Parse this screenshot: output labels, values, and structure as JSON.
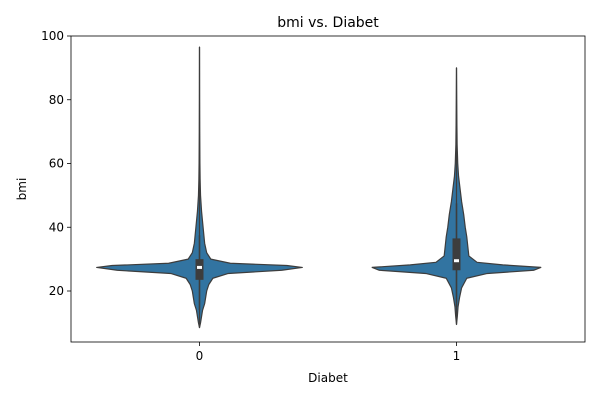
{
  "chart_data": {
    "type": "violin",
    "title": "bmi vs. Diabet",
    "xlabel": "Diabet",
    "ylabel": "bmi",
    "categories": [
      "0",
      "1"
    ],
    "ylim": [
      4,
      100
    ],
    "yticks": [
      20,
      40,
      60,
      80,
      100
    ],
    "grid": false,
    "legend": "none",
    "color": "#3274a1",
    "outline_color": "#3d3d3d",
    "violins": [
      {
        "category": "0",
        "min": 8.5,
        "q1": 23.5,
        "median": 27.4,
        "q3": 30.0,
        "max": 96.5,
        "whisker_low": 14.0,
        "whisker_high": 37.5,
        "density": [
          [
            8.5,
            0.0
          ],
          [
            10,
            0.01
          ],
          [
            12,
            0.02
          ],
          [
            14,
            0.03
          ],
          [
            16,
            0.05
          ],
          [
            18,
            0.06
          ],
          [
            20,
            0.07
          ],
          [
            22,
            0.09
          ],
          [
            24,
            0.13
          ],
          [
            25.5,
            0.28
          ],
          [
            26.5,
            0.8
          ],
          [
            27.4,
            1.0
          ],
          [
            28,
            0.85
          ],
          [
            28.7,
            0.3
          ],
          [
            30,
            0.11
          ],
          [
            32,
            0.07
          ],
          [
            35,
            0.05
          ],
          [
            40,
            0.035
          ],
          [
            45,
            0.02
          ],
          [
            50,
            0.01
          ],
          [
            55,
            0.006
          ],
          [
            60,
            0.004
          ],
          [
            70,
            0.002
          ],
          [
            80,
            0.001
          ],
          [
            96.5,
            0.0
          ]
        ]
      },
      {
        "category": "1",
        "min": 9.5,
        "q1": 26.5,
        "median": 29.5,
        "q3": 36.5,
        "max": 90.0,
        "whisker_low": 15.0,
        "whisker_high": 47.5,
        "density": [
          [
            9.5,
            0.0
          ],
          [
            12,
            0.008
          ],
          [
            15,
            0.015
          ],
          [
            18,
            0.03
          ],
          [
            21,
            0.05
          ],
          [
            24,
            0.1
          ],
          [
            25.5,
            0.3
          ],
          [
            26.5,
            0.75
          ],
          [
            27.4,
            0.82
          ],
          [
            28.2,
            0.45
          ],
          [
            29,
            0.2
          ],
          [
            31,
            0.12
          ],
          [
            34,
            0.11
          ],
          [
            37,
            0.1
          ],
          [
            40,
            0.085
          ],
          [
            44,
            0.07
          ],
          [
            48,
            0.05
          ],
          [
            52,
            0.035
          ],
          [
            56,
            0.02
          ],
          [
            60,
            0.012
          ],
          [
            66,
            0.006
          ],
          [
            72,
            0.004
          ],
          [
            80,
            0.002
          ],
          [
            90,
            0.0
          ]
        ]
      }
    ]
  }
}
